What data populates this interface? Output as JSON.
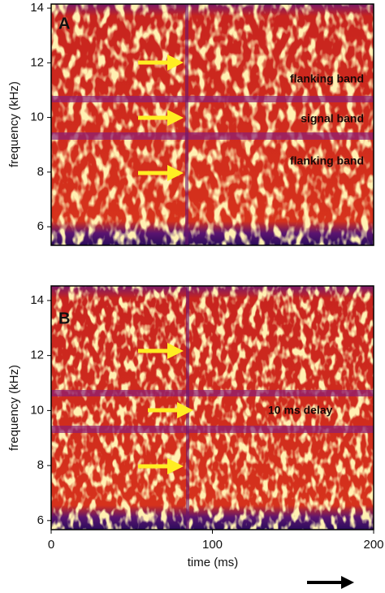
{
  "chart_data": [
    {
      "type": "spectrogram",
      "panel_label": "A",
      "ylabel": "frequency (kHz)",
      "ylim": [
        5.32,
        14.15
      ],
      "yticks": [
        6,
        8,
        10,
        12,
        14
      ],
      "annotations": [
        "flanking band",
        "signal band",
        "flanking band"
      ]
    },
    {
      "type": "spectrogram",
      "panel_label": "B",
      "ylabel": "frequency (kHz)",
      "xlabel": "time (ms)",
      "xlim": [
        0,
        200
      ],
      "xticks": [
        0,
        100,
        200
      ],
      "ylim": [
        5.67,
        14.53
      ],
      "yticks": [
        6,
        8,
        10,
        12,
        14
      ],
      "annotations": [
        "10 ms delay"
      ]
    }
  ]
}
